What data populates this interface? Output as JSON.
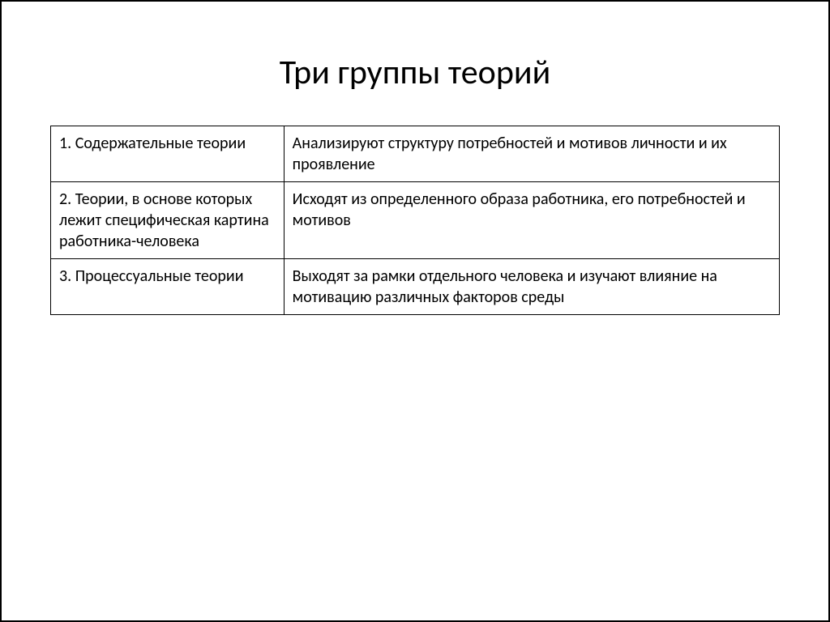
{
  "slide": {
    "title": "Три группы теорий",
    "table": {
      "columns": [
        {
          "width": "32%"
        },
        {
          "width": "68%"
        }
      ],
      "rows": [
        {
          "left": "1. Содержательные теории",
          "right": "Анализируют структуру потребностей и мотивов личности и их проявление"
        },
        {
          "left": "2. Теории, в основе которых лежит специфическая картина работника-человека",
          "right": "Исходят из определенного образа работника, его потребностей и мотивов"
        },
        {
          "left": "3. Процессуальные теории",
          "right": "Выходят за рамки отдельного человека и изучают влияние на мотивацию различных факторов среды"
        }
      ]
    },
    "style": {
      "frame_border_color": "#000000",
      "background_color": "#ffffff",
      "title_fontsize": 42,
      "cell_fontsize": 20,
      "text_color": "#000000",
      "cell_border_color": "#000000"
    }
  }
}
